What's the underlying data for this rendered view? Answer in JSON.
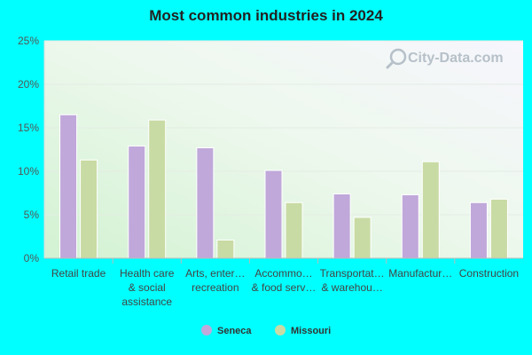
{
  "watermark": "City-Data.com",
  "colors": {
    "page_bg": "#00ffff",
    "seneca": "#c0a8da",
    "missouri": "#c8dba4"
  },
  "chart_data": {
    "type": "bar",
    "title": "Most common industries in 2024",
    "xlabel": "",
    "ylabel": "",
    "ylim": [
      0,
      25
    ],
    "yticks": [
      "0%",
      "5%",
      "10%",
      "15%",
      "20%",
      "25%"
    ],
    "categories": [
      [
        "Retail trade"
      ],
      [
        "Health care",
        "& social",
        "assistance"
      ],
      [
        "Arts, enter…",
        "recreation"
      ],
      [
        "Accommo…",
        "& food serv…"
      ],
      [
        "Transportat…",
        "& warehou…"
      ],
      [
        "Manufactur…"
      ],
      [
        "Construction"
      ]
    ],
    "series": [
      {
        "name": "Seneca",
        "color": "#c0a8da",
        "values": [
          16.5,
          12.9,
          12.7,
          10.1,
          7.4,
          7.3,
          6.4
        ]
      },
      {
        "name": "Missouri",
        "color": "#c8dba4",
        "values": [
          11.3,
          15.9,
          2.1,
          6.4,
          4.7,
          11.1,
          6.8
        ]
      }
    ],
    "legend_position": "bottom-center",
    "grid": true
  }
}
